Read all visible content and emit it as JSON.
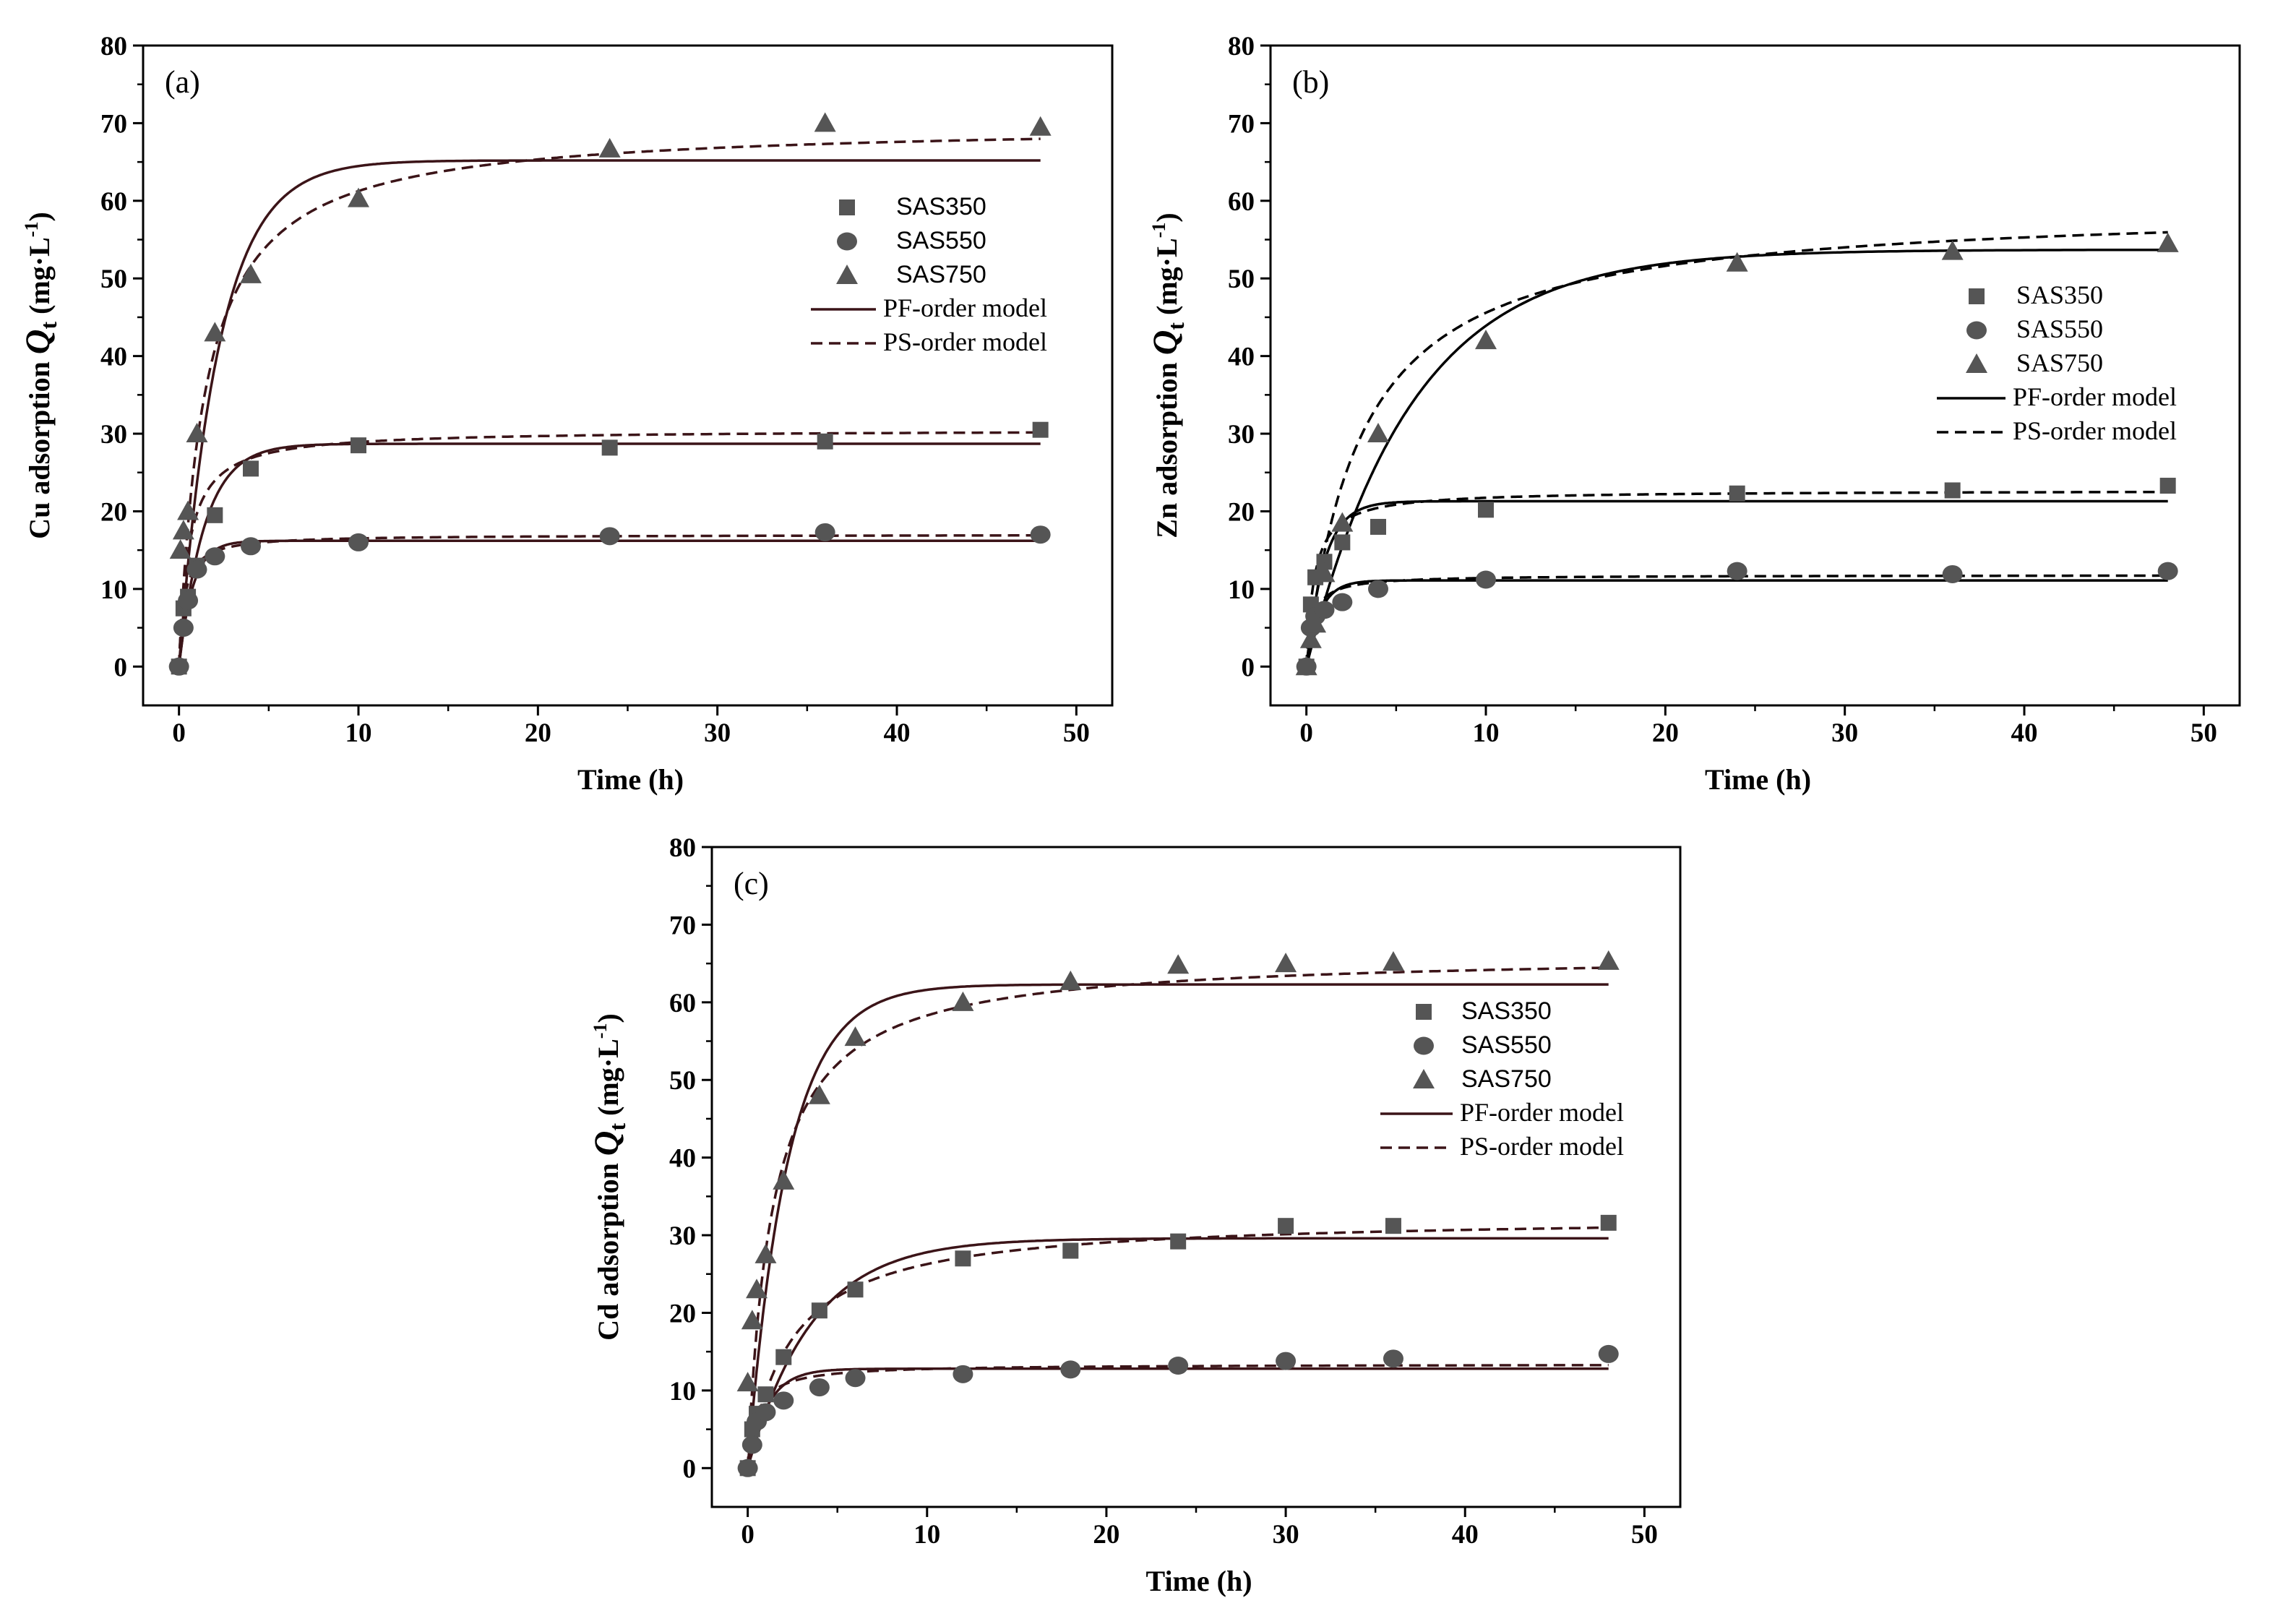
{
  "chart_data": [
    {
      "type": "scatter",
      "panel_label": "(a)",
      "xlabel": "Time (h)",
      "ylabel_prefix": "Cu adsorption",
      "ylabel_symbol": "Q",
      "ylabel_sub": "t",
      "ylabel_unit": "(mg·L",
      "ylabel_sup": "-1",
      "ylabel_close": ")",
      "xlim": [
        -2,
        52
      ],
      "ylim": [
        -5,
        80
      ],
      "xticks": [
        0,
        10,
        20,
        30,
        40,
        50
      ],
      "yticks": [
        0,
        10,
        20,
        30,
        40,
        50,
        60,
        70,
        80
      ],
      "legend_position": "right-upper",
      "legend": [
        "SAS350",
        "SAS550",
        "SAS750",
        "PF-order model",
        "PS-order model"
      ],
      "series": [
        {
          "name": "SAS350",
          "marker": "square",
          "x": [
            0,
            0.25,
            0.5,
            1,
            2,
            4,
            10,
            24,
            36,
            48
          ],
          "y": [
            0,
            7.5,
            9,
            13,
            19.5,
            25.5,
            28.5,
            28.2,
            29,
            30.5
          ]
        },
        {
          "name": "SAS550",
          "marker": "circle",
          "x": [
            0,
            0.25,
            0.5,
            1,
            2,
            4,
            10,
            24,
            36,
            48
          ],
          "y": [
            0,
            5,
            8.5,
            12.5,
            14.2,
            15.5,
            16,
            16.8,
            17.3,
            17
          ]
        },
        {
          "name": "SAS750",
          "marker": "triangle",
          "x": [
            0.08,
            0.25,
            0.5,
            1,
            2,
            4,
            10,
            24,
            36,
            48
          ],
          "y": [
            15,
            17.5,
            20,
            30,
            43,
            50.5,
            60.3,
            66.7,
            70,
            69.5
          ]
        }
      ],
      "fits": [
        {
          "name": "PF-order model",
          "style": "solid",
          "for": "SAS350",
          "qe": 28.7,
          "k": 0.7
        },
        {
          "name": "PS-order model",
          "style": "dashed",
          "for": "SAS350",
          "qe": 30.5,
          "k": 0.06
        },
        {
          "name": "PF-order model",
          "style": "solid",
          "for": "SAS550",
          "qe": 16.2,
          "k": 1.3
        },
        {
          "name": "PS-order model",
          "style": "dashed",
          "for": "SAS550",
          "qe": 17.0,
          "k": 0.2
        },
        {
          "name": "PF-order model",
          "style": "solid",
          "for": "SAS750",
          "qe": 65.2,
          "k": 0.45
        },
        {
          "name": "PS-order model",
          "style": "dashed",
          "for": "SAS750",
          "qe": 70.0,
          "k": 0.01
        }
      ]
    },
    {
      "type": "scatter",
      "panel_label": "(b)",
      "xlabel": "Time (h)",
      "ylabel_prefix": "Zn adsorption",
      "ylabel_symbol": "Q",
      "ylabel_sub": "t",
      "ylabel_unit": "(mg·L",
      "ylabel_sup": "-1",
      "ylabel_close": ")",
      "xlim": [
        -2,
        52
      ],
      "ylim": [
        -5,
        80
      ],
      "xticks": [
        0,
        10,
        20,
        30,
        40,
        50
      ],
      "yticks": [
        0,
        10,
        20,
        30,
        40,
        50,
        60,
        70,
        80
      ],
      "legend_position": "right-middle",
      "legend": [
        "SAS350",
        "SAS550",
        "SAS750",
        "PF-order model",
        "PS-order model"
      ],
      "series": [
        {
          "name": "SAS350",
          "marker": "square",
          "x": [
            0,
            0.25,
            0.5,
            1,
            2,
            4,
            10,
            24,
            36,
            48
          ],
          "y": [
            0,
            8,
            11.5,
            13.5,
            16,
            18,
            20.2,
            22.3,
            22.7,
            23.3
          ]
        },
        {
          "name": "SAS550",
          "marker": "circle",
          "x": [
            0,
            0.25,
            0.5,
            1,
            2,
            4,
            10,
            24,
            36,
            48
          ],
          "y": [
            0,
            5,
            6.5,
            7.3,
            8.3,
            10,
            11.2,
            12.3,
            11.9,
            12.3
          ]
        },
        {
          "name": "SAS750",
          "marker": "triangle",
          "x": [
            0,
            0.25,
            0.5,
            1,
            2,
            4,
            10,
            24,
            36,
            48
          ],
          "y": [
            0,
            3.5,
            5.5,
            12,
            18.5,
            30,
            42,
            52,
            53.5,
            54.5
          ]
        }
      ],
      "fits": [
        {
          "name": "PF-order model",
          "style": "solid",
          "for": "SAS350",
          "qe": 21.3,
          "k": 1.0
        },
        {
          "name": "PS-order model",
          "style": "dashed",
          "for": "SAS350",
          "qe": 22.7,
          "k": 0.1
        },
        {
          "name": "PF-order model",
          "style": "solid",
          "for": "SAS550",
          "qe": 11.1,
          "k": 1.3
        },
        {
          "name": "PS-order model",
          "style": "dashed",
          "for": "SAS550",
          "qe": 11.8,
          "k": 0.25
        },
        {
          "name": "PF-order model",
          "style": "solid",
          "for": "SAS750",
          "qe": 53.7,
          "k": 0.17
        },
        {
          "name": "PS-order model",
          "style": "dashed",
          "for": "SAS750",
          "qe": 59.5,
          "k": 0.0055
        }
      ]
    },
    {
      "type": "scatter",
      "panel_label": "(c)",
      "xlabel": "Time (h)",
      "ylabel_prefix": "Cd adsorption",
      "ylabel_symbol": "Q",
      "ylabel_sub": "t",
      "ylabel_unit": "(mg·L",
      "ylabel_sup": "-1",
      "ylabel_close": ")",
      "xlim": [
        -2,
        52
      ],
      "ylim": [
        -5,
        80
      ],
      "xticks": [
        0,
        10,
        20,
        30,
        40,
        50
      ],
      "yticks": [
        0,
        10,
        20,
        30,
        40,
        50,
        60,
        70,
        80
      ],
      "legend_position": "right-upper",
      "legend": [
        "SAS350",
        "SAS550",
        "SAS750",
        "PF-order model",
        "PS-order model"
      ],
      "series": [
        {
          "name": "SAS350",
          "marker": "square",
          "x": [
            0,
            0.25,
            0.5,
            1,
            2,
            4,
            6,
            12,
            18,
            24,
            30,
            36,
            48
          ],
          "y": [
            0,
            5,
            7,
            9.5,
            14.3,
            20.3,
            23,
            27,
            28,
            29.2,
            31.2,
            31.2,
            31.6
          ]
        },
        {
          "name": "SAS550",
          "marker": "circle",
          "x": [
            0,
            0.25,
            0.5,
            1,
            2,
            4,
            6,
            12,
            18,
            24,
            30,
            36,
            48
          ],
          "y": [
            0,
            3,
            6,
            7.2,
            8.7,
            10.4,
            11.6,
            12.1,
            12.7,
            13.2,
            13.8,
            14.1,
            14.7
          ]
        },
        {
          "name": "SAS750",
          "marker": "triangle",
          "x": [
            0,
            0.25,
            0.5,
            1,
            2,
            4,
            6,
            12,
            18,
            24,
            30,
            36,
            48
          ],
          "y": [
            11,
            19,
            23,
            27.5,
            37,
            48,
            55.5,
            60,
            62.7,
            64.8,
            65,
            65.2,
            65.3
          ]
        }
      ],
      "fits": [
        {
          "name": "PF-order model",
          "style": "solid",
          "for": "SAS350",
          "qe": 29.6,
          "k": 0.28
        },
        {
          "name": "PS-order model",
          "style": "dashed",
          "for": "SAS350",
          "qe": 32.5,
          "k": 0.013
        },
        {
          "name": "PF-order model",
          "style": "solid",
          "for": "SAS550",
          "qe": 12.8,
          "k": 0.9
        },
        {
          "name": "PS-order model",
          "style": "dashed",
          "for": "SAS550",
          "qe": 13.4,
          "k": 0.15
        },
        {
          "name": "PF-order model",
          "style": "solid",
          "for": "SAS750",
          "qe": 62.3,
          "k": 0.45
        },
        {
          "name": "PS-order model",
          "style": "dashed",
          "for": "SAS750",
          "qe": 66.3,
          "k": 0.011
        }
      ]
    }
  ],
  "colors": {
    "marker": "#555555",
    "fit_line_ac": "#3b1418",
    "fit_line_b": "#000000",
    "axis": "#000000"
  }
}
